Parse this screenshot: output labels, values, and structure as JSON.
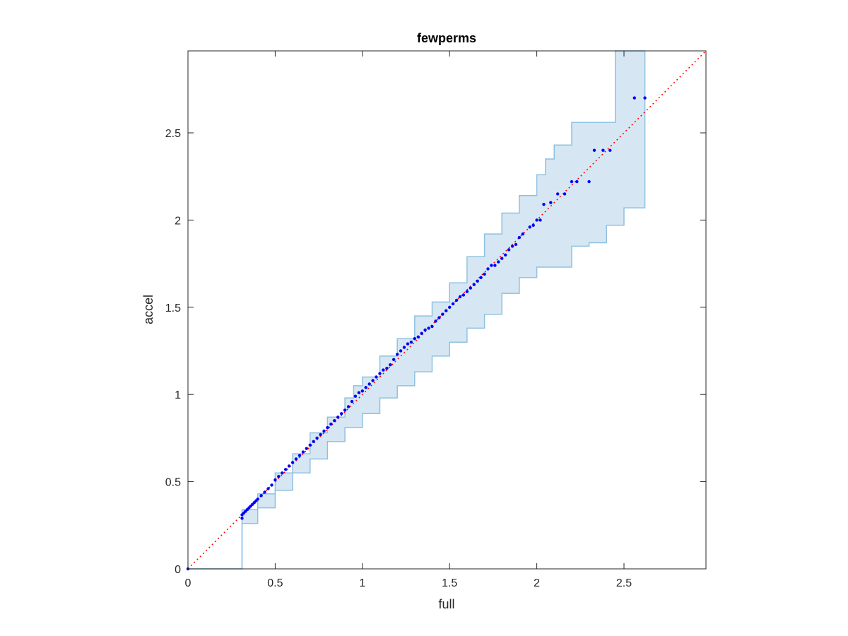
{
  "chart_data": {
    "type": "scatter",
    "title": "fewperms",
    "xlabel": "full",
    "ylabel": "accel",
    "xlim": [
      0,
      2.97
    ],
    "ylim": [
      0,
      2.97
    ],
    "xticks": [
      0,
      0.5,
      1,
      1.5,
      2,
      2.5
    ],
    "yticks": [
      0,
      0.5,
      1,
      1.5,
      2,
      2.5
    ],
    "xtick_labels": [
      "0",
      "0.5",
      "1",
      "1.5",
      "2",
      "2.5"
    ],
    "ytick_labels": [
      "0",
      "0.5",
      "1",
      "1.5",
      "2",
      "2.5"
    ],
    "grid": false,
    "legend": "none",
    "colors": {
      "points": "#0000ff",
      "reference_line": "#ff0000",
      "band_fill": "#d6e7f3",
      "band_edge": "#8fc1e0",
      "axes": "#262626"
    },
    "reference_line": {
      "x": [
        0,
        2.97
      ],
      "y": [
        0,
        2.97
      ],
      "style": "dotted"
    },
    "band_upper": {
      "x": [
        0,
        0.31,
        0.31,
        0.4,
        0.5,
        0.6,
        0.7,
        0.8,
        0.9,
        0.95,
        1.0,
        1.1,
        1.2,
        1.3,
        1.4,
        1.5,
        1.6,
        1.7,
        1.8,
        1.9,
        2.0,
        2.05,
        2.1,
        2.2,
        2.4,
        2.45,
        2.62
      ],
      "y": [
        0,
        0.26,
        0.34,
        0.43,
        0.55,
        0.66,
        0.78,
        0.87,
        0.98,
        1.05,
        1.1,
        1.22,
        1.32,
        1.45,
        1.53,
        1.64,
        1.79,
        1.92,
        2.04,
        2.14,
        2.26,
        2.35,
        2.43,
        2.56,
        2.56,
        2.97,
        2.97
      ]
    },
    "band_lower": {
      "x": [
        0,
        0.31,
        0.4,
        0.5,
        0.6,
        0.7,
        0.8,
        0.9,
        1.0,
        1.1,
        1.2,
        1.3,
        1.4,
        1.5,
        1.6,
        1.7,
        1.8,
        1.9,
        2.0,
        2.05,
        2.2,
        2.3,
        2.4,
        2.5,
        2.62
      ],
      "y": [
        0,
        0.26,
        0.35,
        0.45,
        0.55,
        0.63,
        0.73,
        0.81,
        0.89,
        0.98,
        1.05,
        1.13,
        1.22,
        1.3,
        1.38,
        1.46,
        1.58,
        1.67,
        1.73,
        1.73,
        1.85,
        1.87,
        1.97,
        2.07,
        2.14
      ]
    },
    "series": [
      {
        "x": [
          0,
          0.31,
          0.31,
          0.32,
          0.33,
          0.34,
          0.35,
          0.36,
          0.37,
          0.38,
          0.39,
          0.4,
          0.42,
          0.44,
          0.46,
          0.48,
          0.5,
          0.52,
          0.54,
          0.56,
          0.58,
          0.6,
          0.62,
          0.64,
          0.66,
          0.68,
          0.7,
          0.72,
          0.74,
          0.76,
          0.78,
          0.8,
          0.82,
          0.84,
          0.86,
          0.88,
          0.9,
          0.92,
          0.94,
          0.96,
          0.98,
          1.0,
          1.02,
          1.04,
          1.06,
          1.08,
          1.1,
          1.12,
          1.14,
          1.16,
          1.18,
          1.2,
          1.22,
          1.24,
          1.26,
          1.28,
          1.3,
          1.32,
          1.34,
          1.36,
          1.38,
          1.4,
          1.42,
          1.44,
          1.46,
          1.48,
          1.5,
          1.52,
          1.54,
          1.56,
          1.58,
          1.6,
          1.62,
          1.64,
          1.66,
          1.68,
          1.7,
          1.72,
          1.74,
          1.76,
          1.78,
          1.8,
          1.82,
          1.84,
          1.86,
          1.88,
          1.9,
          1.92,
          1.96,
          1.98,
          2.0,
          2.02,
          2.04,
          2.08,
          2.12,
          2.16,
          2.2,
          2.23,
          2.3,
          2.33,
          2.38,
          2.42,
          2.56,
          2.62
        ],
        "y": [
          0,
          0.29,
          0.31,
          0.32,
          0.33,
          0.34,
          0.35,
          0.36,
          0.37,
          0.38,
          0.39,
          0.4,
          0.42,
          0.44,
          0.46,
          0.48,
          0.51,
          0.53,
          0.55,
          0.57,
          0.59,
          0.61,
          0.63,
          0.65,
          0.67,
          0.69,
          0.71,
          0.73,
          0.75,
          0.77,
          0.79,
          0.81,
          0.83,
          0.85,
          0.87,
          0.89,
          0.91,
          0.93,
          0.96,
          0.99,
          1.01,
          1.02,
          1.04,
          1.06,
          1.08,
          1.1,
          1.12,
          1.14,
          1.15,
          1.17,
          1.2,
          1.23,
          1.25,
          1.27,
          1.29,
          1.3,
          1.32,
          1.33,
          1.35,
          1.37,
          1.38,
          1.39,
          1.42,
          1.44,
          1.46,
          1.48,
          1.5,
          1.52,
          1.54,
          1.56,
          1.57,
          1.59,
          1.61,
          1.63,
          1.65,
          1.67,
          1.69,
          1.72,
          1.74,
          1.74,
          1.76,
          1.78,
          1.8,
          1.83,
          1.85,
          1.86,
          1.9,
          1.92,
          1.96,
          1.97,
          2.0,
          2.0,
          2.09,
          2.1,
          2.15,
          2.15,
          2.22,
          2.22,
          2.22,
          2.4,
          2.4,
          2.4,
          2.7,
          2.7
        ]
      }
    ]
  }
}
